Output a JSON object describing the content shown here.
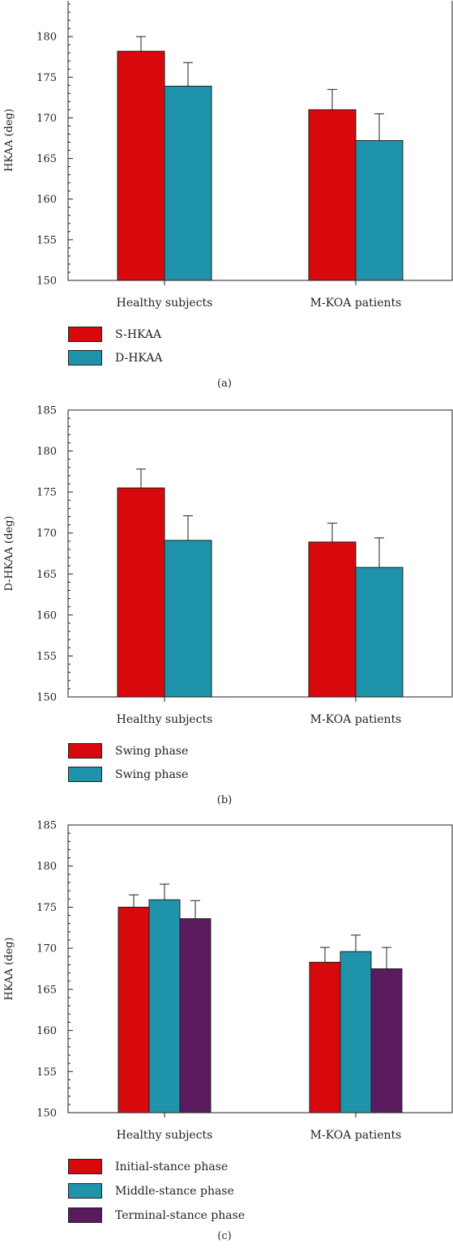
{
  "colors": {
    "red": "#d7090d",
    "teal": "#1f93aa",
    "purple": "#5a1a5e",
    "axis": "#231f20"
  },
  "chart_data": [
    {
      "type": "bar",
      "panel": "(a)",
      "ylabel": "HKAA (deg)",
      "ylim": [
        150,
        185
      ],
      "yticks": [
        150,
        155,
        160,
        165,
        170,
        175,
        180
      ],
      "categories": [
        "Healthy subjects",
        "M-KOA patients"
      ],
      "series": [
        {
          "name": "S-HKAA",
          "color": "#d7090d",
          "values": [
            178.2,
            171.0
          ],
          "errors": [
            1.8,
            2.5
          ]
        },
        {
          "name": "D-HKAA",
          "color": "#1f93aa",
          "values": [
            173.9,
            167.2
          ],
          "errors": [
            2.9,
            3.3
          ]
        }
      ],
      "grid": false,
      "legend_position": "bottom-left"
    },
    {
      "type": "bar",
      "panel": "(b)",
      "ylabel": "D-HKAA (deg)",
      "ylim": [
        150,
        185
      ],
      "yticks": [
        150,
        155,
        160,
        165,
        170,
        175,
        180,
        185
      ],
      "categories": [
        "Healthy subjects",
        "M-KOA patients"
      ],
      "series": [
        {
          "name": "Swing phase",
          "color": "#d7090d",
          "values": [
            175.5,
            168.9
          ],
          "errors": [
            2.3,
            2.3
          ]
        },
        {
          "name": "Swing phase",
          "color": "#1f93aa",
          "values": [
            169.1,
            165.8
          ],
          "errors": [
            3.0,
            3.6
          ]
        }
      ],
      "grid": false,
      "legend_position": "bottom-left"
    },
    {
      "type": "bar",
      "panel": "(c)",
      "ylabel": "HKAA (deg)",
      "ylim": [
        150,
        185
      ],
      "yticks": [
        150,
        155,
        160,
        165,
        170,
        175,
        180,
        185
      ],
      "categories": [
        "Healthy subjects",
        "M-KOA patients"
      ],
      "series": [
        {
          "name": "Initial-stance phase",
          "color": "#d7090d",
          "values": [
            175.0,
            168.3
          ],
          "errors": [
            1.5,
            1.8
          ]
        },
        {
          "name": "Middle-stance phase",
          "color": "#1f93aa",
          "values": [
            175.9,
            169.6
          ],
          "errors": [
            1.9,
            2.0
          ]
        },
        {
          "name": "Terminal-stance phase",
          "color": "#5a1a5e",
          "values": [
            173.6,
            167.5
          ],
          "errors": [
            2.2,
            2.6
          ]
        }
      ],
      "grid": false,
      "legend_position": "bottom-left"
    }
  ]
}
